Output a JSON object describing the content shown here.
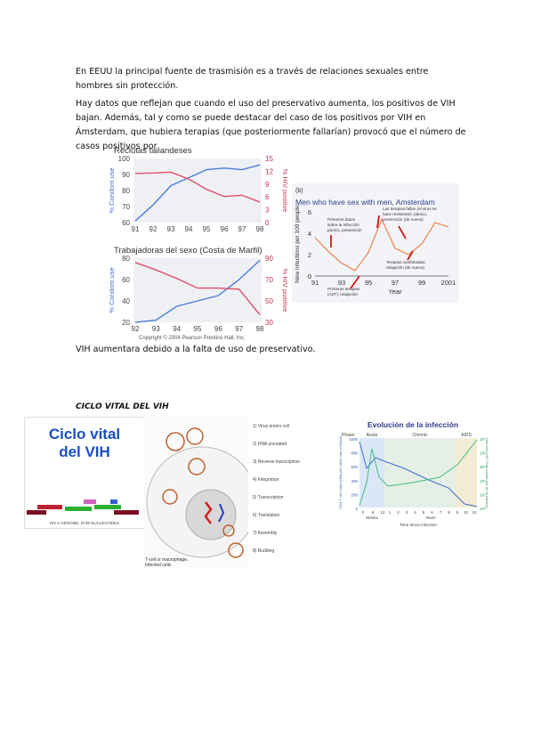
{
  "doc": {
    "p1": "En EEUU la principal fuente de trasmisión es a través de relaciones sexuales entre hombres sin protección.",
    "p2": "Hay datos que reflejan que cuando el uso del preservativo aumenta, los positivos de VIH bajan. Además, tal y como se puede destacar del caso de los positivos por VIH en Ámsterdam, que hubiera terapias (que posteriormente fallarían) provocó que el número de casos positivos por",
    "p3": "VIH aumentara debido a la falta de uso de preservativo.",
    "section_title": "CICLO VITAL DEL VIH"
  },
  "figures": {
    "copyright": "Copyright © 2004 Pearson Prentice Hall, Inc.",
    "amsterdam_panel": "(b)",
    "amsterdam_ann1": [
      "Primeros datos",
      "sobre la infección",
      "pánico, prevención"
    ],
    "amsterdam_ann2": [
      "Las terapias fallan (el virus se",
      "hace resistente): pánico,",
      "prevención (de nuevo)"
    ],
    "amsterdam_ann3": [
      "Terapias combinadas:",
      "relajación (de nuevo)"
    ],
    "amsterdam_ann4": [
      "Primeras terapias",
      "(AZT): relajación"
    ],
    "lifecycle_title": [
      "Ciclo vital",
      "del VIH"
    ],
    "lifecycle_steps": [
      "1) Virus enters cell",
      "2) RNA uncoated",
      "3) Reverse transcription",
      "4) Integration",
      "5) Transcription",
      "6) Translation",
      "7) Assembly",
      "8) Budding"
    ],
    "genome_caption": "HIV-1 GENOME, 9749 NUCLEOTIDES",
    "macrophage": [
      "T-cell or macrophage,",
      "Infected cells"
    ],
    "evolution_title": "Evolución de la infección",
    "phases": [
      "Phase:",
      "Acute",
      "Chronic",
      "AIDS"
    ],
    "evo_y_left": "CD4 T cell count (cells per cubic mm of blood)",
    "evo_y_right": "Viral load (HIV RNA copies per ml of plasma)",
    "evo_x_weeks": "Weeks",
    "evo_x_years": "Years",
    "evo_x_title": "Time since infection",
    "evo_weeks_ticks": [
      "0",
      "6",
      "12"
    ],
    "evo_years_ticks": [
      "1",
      "2",
      "3",
      "4",
      "5",
      "6",
      "7",
      "8",
      "9",
      "10",
      "11"
    ],
    "evo_left_ticks": [
      "1000",
      "800",
      "600",
      "400",
      "200",
      "0"
    ],
    "evo_right_ticks": [
      "10⁷",
      "10⁶",
      "10⁵",
      "10⁴",
      "10³",
      "10²"
    ]
  },
  "chart_data": [
    {
      "type": "line",
      "title": "Reclutas tailandeses",
      "x": [
        91,
        92,
        93,
        94,
        95,
        96,
        97,
        98
      ],
      "ylabel": "% Condom use",
      "ylabel_right": "% HIV positive",
      "ylim": [
        60,
        100
      ],
      "ylim_right": [
        0,
        15
      ],
      "yticks": [
        60,
        70,
        80,
        90,
        100
      ],
      "yticks_right": [
        0,
        3,
        6,
        9,
        12,
        15
      ],
      "colors": {
        "condom": "#4a7fd8",
        "hiv": "#e0506a"
      },
      "series": [
        {
          "name": "% Condom use",
          "axis": "left",
          "values": [
            61,
            71,
            83,
            88,
            93,
            94,
            93,
            96
          ]
        },
        {
          "name": "% HIV positive",
          "axis": "right",
          "values": [
            11.5,
            11.6,
            11.8,
            10.2,
            7.8,
            6.1,
            6.4,
            4.8
          ]
        }
      ]
    },
    {
      "type": "line",
      "title": "Trabajadoras del sexo (Costa de Marfil)",
      "x": [
        92,
        93,
        94,
        95,
        96,
        97,
        98
      ],
      "ylabel": "% Condom use",
      "ylabel_right": "% HIV positive",
      "ylim": [
        20,
        80
      ],
      "ylim_right": [
        30,
        90
      ],
      "yticks": [
        20,
        40,
        60,
        80
      ],
      "yticks_right": [
        30,
        50,
        70,
        90
      ],
      "colors": {
        "condom": "#4a7fd8",
        "hiv": "#e0506a"
      },
      "series": [
        {
          "name": "% Condom use",
          "axis": "left",
          "values": [
            20,
            22,
            35,
            40,
            45,
            60,
            78
          ]
        },
        {
          "name": "% HIV positive",
          "axis": "right",
          "values": [
            86,
            79,
            71,
            62,
            62,
            61,
            37
          ]
        }
      ]
    },
    {
      "type": "line",
      "title": "Men who have sex with men, Amsterdam",
      "x": [
        91,
        92,
        93,
        94,
        95,
        96,
        97,
        98,
        99,
        2000,
        2001
      ],
      "xticks": [
        "91",
        "93",
        "95",
        "97",
        "99",
        "2001"
      ],
      "xlabel": "Year",
      "ylabel": "New infections per 100 people",
      "ylim": [
        0,
        6
      ],
      "yticks": [
        0,
        2,
        4,
        6
      ],
      "color": "#f08a55",
      "values": [
        3.6,
        2.3,
        1.2,
        0.5,
        2.2,
        5.3,
        2.6,
        2.0,
        3.0,
        5.0,
        4.6
      ]
    }
  ]
}
